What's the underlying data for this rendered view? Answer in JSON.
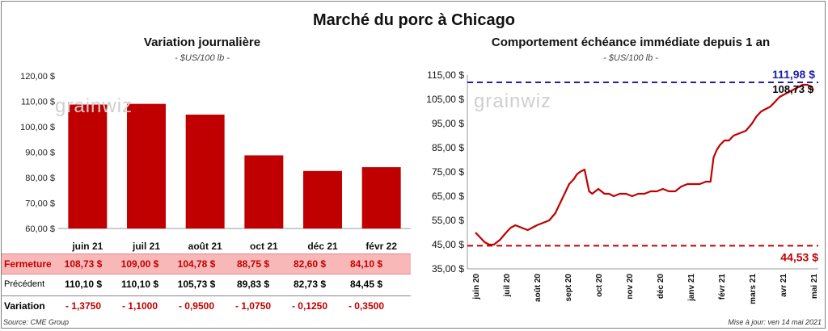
{
  "title": "Marché du porc à Chicago",
  "left_chart": {
    "subtitle": "Variation journalière",
    "unit": "- $US/100 lb -"
  },
  "right_chart": {
    "subtitle": "Comportement échéance immédiate depuis 1 an",
    "unit": "- $US/100 lb -"
  },
  "watermark": "grainwiz",
  "table": {
    "rows": [
      {
        "label": "Fermeture",
        "cells": [
          "108,73 $",
          "109,00 $",
          "104,78 $",
          "88,75 $",
          "82,60 $",
          "84,10 $"
        ]
      },
      {
        "label": "Précédent",
        "cells": [
          "110,10 $",
          "110,10 $",
          "105,73 $",
          "89,83 $",
          "82,73 $",
          "84,45 $"
        ]
      },
      {
        "label": "Variation",
        "cells": [
          "- 1,3750",
          "- 1,1000",
          "- 0,9500",
          "- 1,0750",
          "- 0,1250",
          "- 0,3500"
        ]
      }
    ]
  },
  "source": "Source: CME Group",
  "update": "Mise à jour: ven 14 mai 2021",
  "chart_data": [
    {
      "type": "bar",
      "title": "Variation journalière",
      "ylabel": "- $US/100 lb -",
      "categories": [
        "juin 21",
        "juil 21",
        "août 21",
        "oct 21",
        "déc 21",
        "févr 22"
      ],
      "values": [
        108.73,
        109.0,
        104.78,
        88.75,
        82.6,
        84.1
      ],
      "ylim": [
        60,
        120
      ],
      "yticks": [
        "60,00 $",
        "70,00 $",
        "80,00 $",
        "90,00 $",
        "100,00 $",
        "110,00 $",
        "120,00 $"
      ],
      "color": "#c00000",
      "grid": false
    },
    {
      "type": "line",
      "title": "Comportement échéance immédiate depuis 1 an",
      "ylabel": "- $US/100 lb -",
      "ylim": [
        35,
        115
      ],
      "yticks": [
        "35,00 $",
        "45,00 $",
        "55,00 $",
        "65,00 $",
        "75,00 $",
        "85,00 $",
        "95,00 $",
        "105,00 $",
        "115,00 $"
      ],
      "xticks": [
        "juin 20",
        "juil 20",
        "août 20",
        "sept 20",
        "oct 20",
        "nov 20",
        "déc 20",
        "janv 21",
        "févr 21",
        "mars 21",
        "avr 21",
        "mai 21"
      ],
      "color": "#c00000",
      "series": [
        {
          "x": [
            0,
            0.15,
            0.3,
            0.45,
            0.6,
            0.8,
            1.0,
            1.15,
            1.3,
            1.5,
            1.7,
            1.85,
            2.0,
            2.2,
            2.4,
            2.6,
            2.75,
            2.9,
            3.05,
            3.2,
            3.3,
            3.4,
            3.55,
            3.7,
            3.8,
            3.9,
            4.0,
            4.1,
            4.2,
            4.35,
            4.5,
            4.7,
            4.9,
            5.1,
            5.3,
            5.5,
            5.7,
            5.9,
            6.1,
            6.3,
            6.5,
            6.7,
            6.9,
            7.1,
            7.3,
            7.5,
            7.65,
            7.75,
            7.85,
            7.95,
            8.1,
            8.25,
            8.4,
            8.6,
            8.8,
            9.0,
            9.15,
            9.3,
            9.45,
            9.6,
            9.75,
            9.9,
            10.05,
            10.2,
            10.35,
            10.5,
            10.65,
            10.8,
            10.95,
            11.0
          ],
          "y": [
            50,
            48,
            46,
            45,
            45,
            47,
            50,
            52,
            53,
            52,
            51,
            52,
            53,
            54,
            55,
            58,
            62,
            66,
            70,
            72,
            74,
            75,
            76,
            67,
            66,
            67,
            68,
            67,
            66,
            66,
            65,
            66,
            66,
            65,
            66,
            66,
            67,
            67,
            68,
            67,
            67,
            69,
            70,
            70,
            70,
            71,
            71,
            81,
            84,
            86,
            88,
            88,
            90,
            91,
            92,
            95,
            98,
            100,
            101,
            102,
            104,
            106,
            107,
            108,
            109,
            110,
            111,
            111,
            110,
            108.73
          ]
        }
      ],
      "annotations": [
        {
          "label": "111,98 $",
          "y": 111.98,
          "color": "#1f1fa8",
          "style": "dashed"
        },
        {
          "label": "108,73 $",
          "y": 108.73,
          "color": "#000000"
        },
        {
          "label": "44,53 $",
          "y": 44.53,
          "color": "#c00000",
          "style": "dashed"
        }
      ],
      "grid": false
    }
  ]
}
